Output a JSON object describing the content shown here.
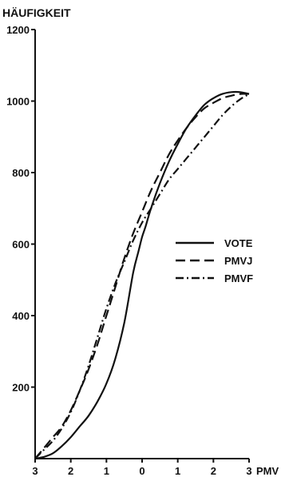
{
  "chart_data": {
    "type": "line",
    "ylabel": "HÄUFIGKEIT",
    "xlabel": "PMV",
    "ylim": [
      0,
      1200
    ],
    "y_ticks": [
      {
        "value": 200,
        "label": "200"
      },
      {
        "value": 400,
        "label": "400"
      },
      {
        "value": 600,
        "label": "600"
      },
      {
        "value": 800,
        "label": "800"
      },
      {
        "value": 1000,
        "label": "1000"
      },
      {
        "value": 1200,
        "label": "1200"
      }
    ],
    "x_ticks": [
      {
        "value": -3,
        "label": "3"
      },
      {
        "value": -2,
        "label": "2"
      },
      {
        "value": -1,
        "label": "1"
      },
      {
        "value": 0,
        "label": "0"
      },
      {
        "value": 1,
        "label": "1"
      },
      {
        "value": 2,
        "label": "2"
      },
      {
        "value": 3,
        "label": "3"
      }
    ],
    "xlim": [
      -3,
      3
    ],
    "grid": false,
    "legend": "right",
    "series": [
      {
        "name": "VOTE",
        "line_style": "solid",
        "x": [
          -3,
          -2.75,
          -2.5,
          -2.25,
          -2,
          -1.75,
          -1.5,
          -1.25,
          -1,
          -0.75,
          -0.5,
          -0.25,
          -0.1,
          0,
          0.1,
          0.25,
          0.5,
          0.75,
          1,
          1.25,
          1.5,
          1.75,
          2,
          2.25,
          2.5,
          2.75,
          3
        ],
        "y": [
          0,
          5,
          15,
          35,
          60,
          90,
          120,
          160,
          210,
          280,
          380,
          520,
          580,
          620,
          650,
          700,
          770,
          830,
          880,
          925,
          960,
          990,
          1008,
          1020,
          1025,
          1025,
          1020
        ]
      },
      {
        "name": "PMVJ",
        "line_style": "dashed",
        "x": [
          -3,
          -2.75,
          -2.5,
          -2.25,
          -2,
          -1.75,
          -1.5,
          -1.25,
          -1,
          -0.75,
          -0.5,
          -0.25,
          0,
          0.25,
          0.5,
          0.75,
          1,
          1.25,
          1.5,
          1.75,
          2,
          2.25,
          2.5,
          2.75,
          3
        ],
        "y": [
          0,
          30,
          60,
          90,
          135,
          190,
          250,
          320,
          400,
          480,
          560,
          630,
          690,
          750,
          800,
          850,
          890,
          925,
          955,
          980,
          995,
          1008,
          1015,
          1020,
          1020
        ]
      },
      {
        "name": "PMVF",
        "line_style": "dash-dot",
        "x": [
          -3,
          -2.75,
          -2.5,
          -2.25,
          -2,
          -1.75,
          -1.5,
          -1.25,
          -1,
          -0.75,
          -0.5,
          -0.25,
          0,
          0.25,
          0.5,
          0.75,
          1,
          1.25,
          1.5,
          1.75,
          2,
          2.25,
          2.5,
          2.75,
          3
        ],
        "y": [
          0,
          25,
          50,
          85,
          130,
          190,
          260,
          340,
          420,
          490,
          550,
          610,
          660,
          700,
          740,
          780,
          810,
          840,
          870,
          900,
          930,
          960,
          985,
          1005,
          1020
        ]
      }
    ]
  }
}
